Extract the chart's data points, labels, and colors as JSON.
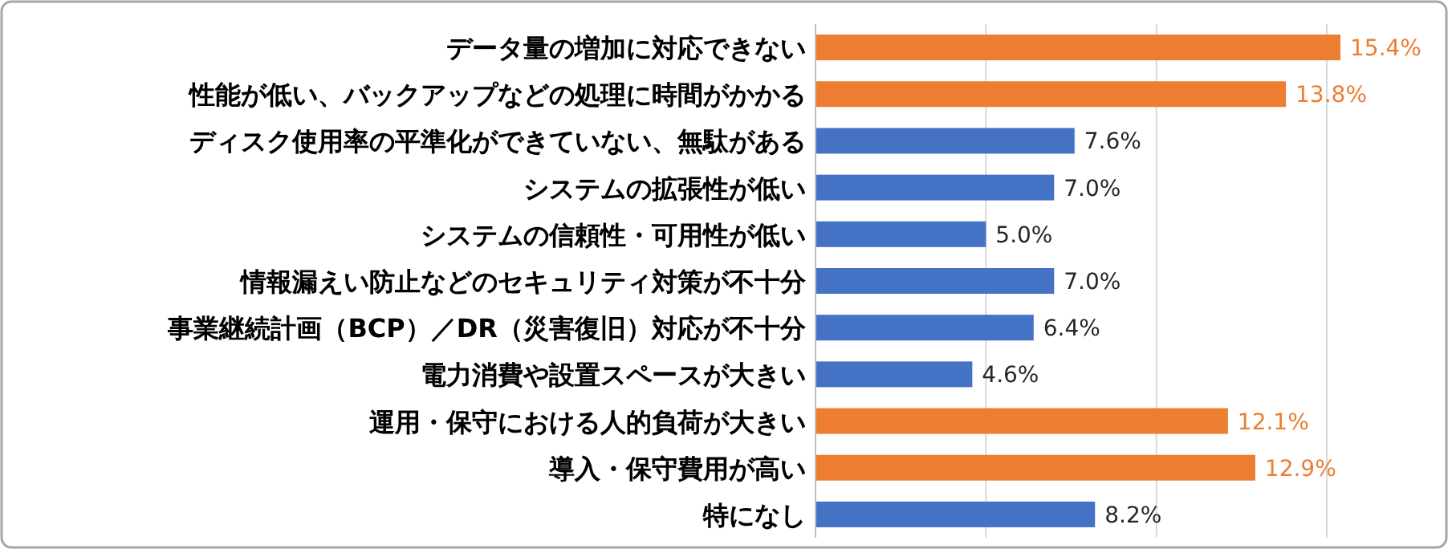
{
  "chart_data": {
    "type": "bar",
    "orientation": "horizontal",
    "categories": [
      "データ量の増加に対応できない",
      "性能が低い、バックアップなどの処理に時間がかかる",
      "ディスク使用率の平準化ができていない、無駄がある",
      "システムの拡張性が低い",
      "システムの信頼性・可用性が低い",
      "情報漏えい防止などのセキュリティ対策が不十分",
      "事業継続計画（BCP）／DR（災害復旧）対応が不十分",
      "電力消費や設置スペースが大きい",
      "運用・保守における人的負荷が大きい",
      "導入・保守費用が高い",
      "特になし"
    ],
    "values": [
      15.4,
      13.8,
      7.6,
      7.0,
      5.0,
      7.0,
      6.4,
      4.6,
      12.1,
      12.9,
      8.2
    ],
    "colors": [
      "#ed7d31",
      "#ed7d31",
      "#4472c4",
      "#4472c4",
      "#4472c4",
      "#4472c4",
      "#4472c4",
      "#4472c4",
      "#ed7d31",
      "#ed7d31",
      "#4472c4"
    ],
    "value_labels": [
      "15.4%",
      "13.8%",
      "7.6%",
      "7.0%",
      "5.0%",
      "7.0%",
      "6.4%",
      "4.6%",
      "12.1%",
      "12.9%",
      "8.2%"
    ],
    "xticks": [
      {
        "value": 0,
        "label": null
      },
      {
        "value": 5,
        "label": null
      },
      {
        "value": 10,
        "label": null
      },
      {
        "value": 15,
        "label": null
      }
    ],
    "grid": "x",
    "tick_labels": "y"
  }
}
